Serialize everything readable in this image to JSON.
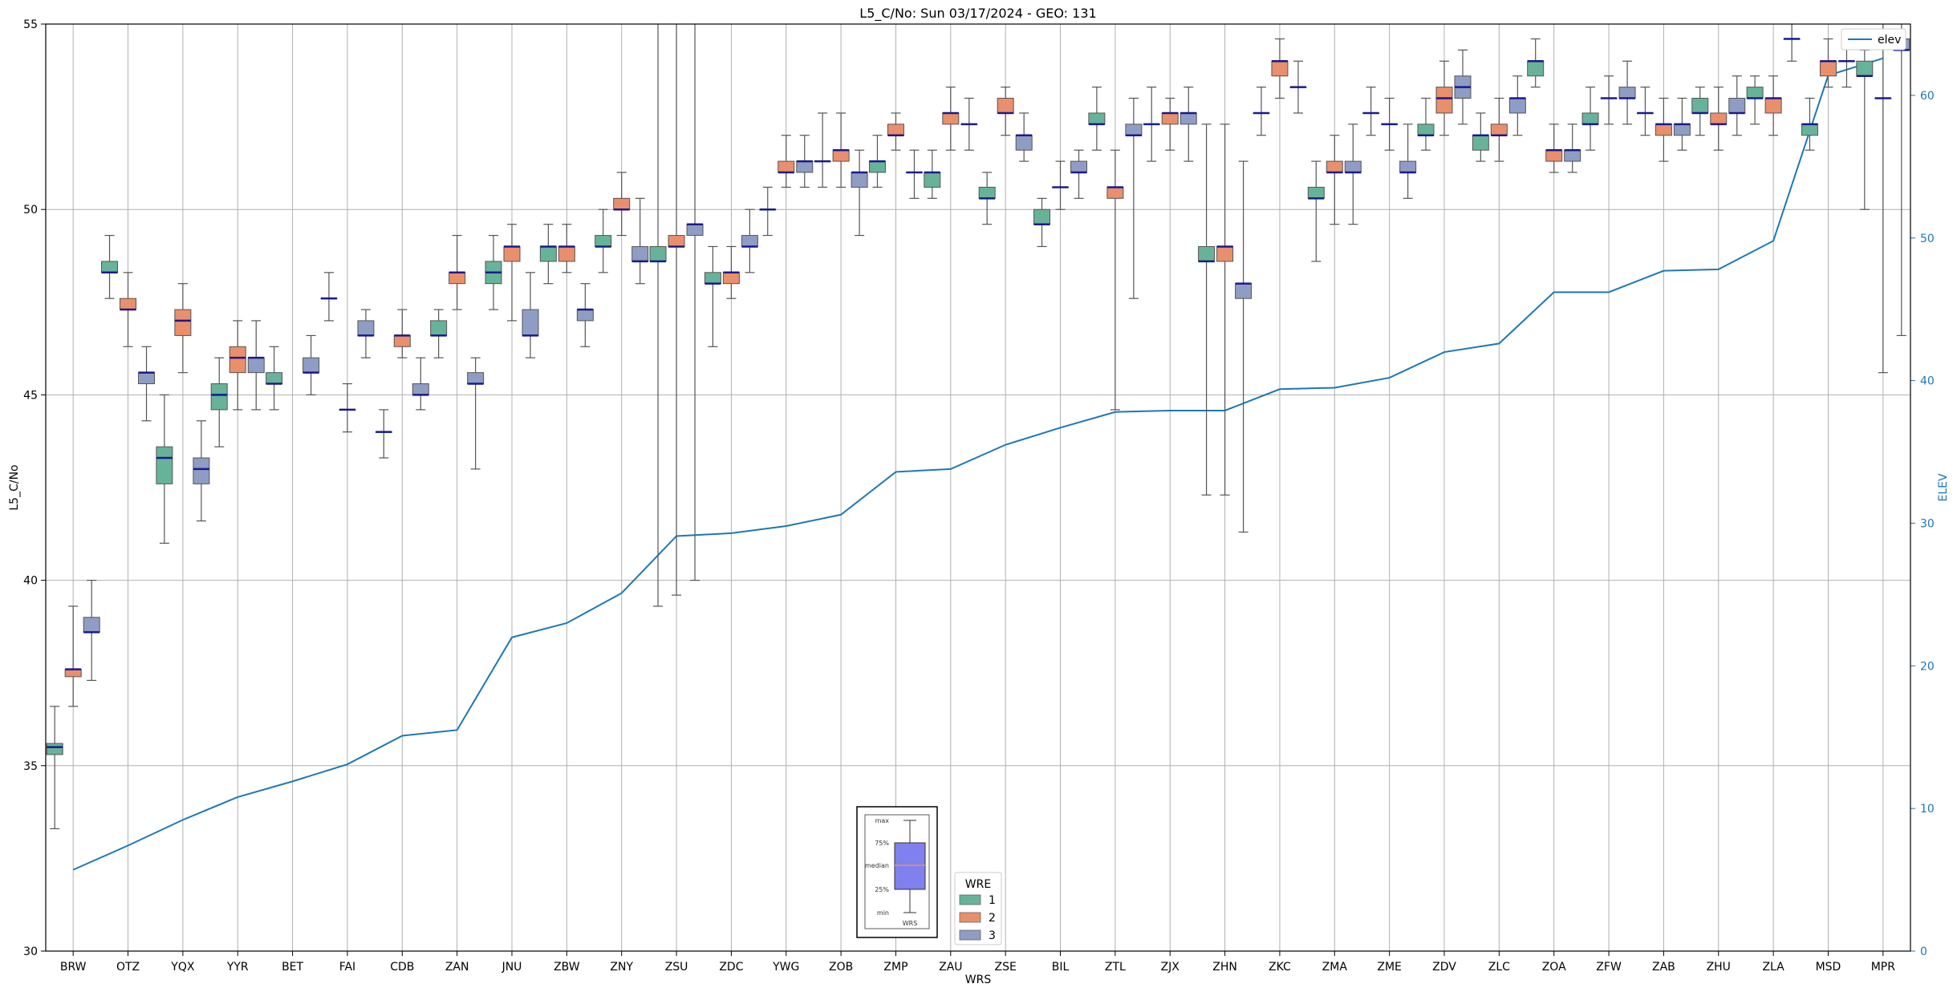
{
  "chart_data": {
    "type": "box",
    "title": "L5_C/No: Sun 03/17/2024 - GEO: 131",
    "xlabel": "WRS",
    "ylabel": "L5_C/No",
    "y2label": "ELEV",
    "ylim": [
      30,
      55
    ],
    "y2lim": [
      0,
      65
    ],
    "yticks": [
      30,
      35,
      40,
      45,
      50,
      55
    ],
    "y2ticks": [
      0,
      10,
      20,
      30,
      40,
      50,
      60
    ],
    "grid": true,
    "categories": [
      "BRW",
      "OTZ",
      "YQX",
      "YYR",
      "BET",
      "FAI",
      "CDB",
      "ZAN",
      "JNU",
      "ZBW",
      "ZNY",
      "ZSU",
      "ZDC",
      "YWG",
      "ZOB",
      "ZMP",
      "ZAU",
      "ZSE",
      "BIL",
      "ZTL",
      "ZJX",
      "ZHN",
      "ZKC",
      "ZMA",
      "ZME",
      "ZDV",
      "ZLC",
      "ZOA",
      "ZFW",
      "ZAB",
      "ZHU",
      "ZLA",
      "MSD",
      "MPR"
    ],
    "legend": {
      "title": "WRE",
      "placement": "bottom-center",
      "entries": [
        "1",
        "2",
        "3"
      ]
    },
    "colors": {
      "wre1": "#66b39a",
      "wre2": "#e98f6c",
      "wre3": "#8f9dc4",
      "median": "#1a1a8c",
      "elev": "#1f77b4",
      "whisker": "#555555",
      "outlier_whisker": "#e0303a"
    },
    "elevation_series": {
      "name": "elev",
      "values": [
        5.7,
        7.4,
        9.2,
        10.8,
        11.9,
        13.1,
        15.1,
        15.5,
        22.0,
        23.0,
        25.1,
        29.1,
        29.3,
        29.8,
        30.6,
        33.6,
        33.8,
        35.5,
        36.7,
        37.8,
        37.9,
        37.9,
        39.4,
        39.5,
        40.2,
        42.0,
        42.6,
        46.2,
        46.2,
        47.7,
        47.8,
        49.8,
        61.4,
        62.6
      ]
    },
    "boxes": [
      {
        "site": "BRW",
        "wre": "1",
        "min": 33.3,
        "q1": 35.3,
        "median": 35.5,
        "q3": 35.6,
        "max": 36.6
      },
      {
        "site": "BRW",
        "wre": "2",
        "min": 36.6,
        "q1": 37.4,
        "median": 37.6,
        "q3": 37.6,
        "max": 39.3
      },
      {
        "site": "BRW",
        "wre": "3",
        "min": 37.3,
        "q1": 38.6,
        "median": 38.6,
        "q3": 39.0,
        "max": 40.0
      },
      {
        "site": "OTZ",
        "wre": "1",
        "min": 47.6,
        "q1": 48.3,
        "median": 48.3,
        "q3": 48.6,
        "max": 49.3
      },
      {
        "site": "OTZ",
        "wre": "2",
        "min": 46.3,
        "q1": 47.3,
        "median": 47.3,
        "q3": 47.6,
        "max": 48.3
      },
      {
        "site": "OTZ",
        "wre": "3",
        "min": 44.3,
        "q1": 45.3,
        "median": 45.6,
        "q3": 45.6,
        "max": 46.3
      },
      {
        "site": "YQX",
        "wre": "1",
        "min": 41.0,
        "q1": 42.6,
        "median": 43.3,
        "q3": 43.6,
        "max": 45.0
      },
      {
        "site": "YQX",
        "wre": "2",
        "min": 45.6,
        "q1": 46.6,
        "median": 47.0,
        "q3": 47.3,
        "max": 48.0
      },
      {
        "site": "YQX",
        "wre": "3",
        "min": 41.6,
        "q1": 42.6,
        "median": 43.0,
        "q3": 43.3,
        "max": 44.3
      },
      {
        "site": "YYR",
        "wre": "1",
        "min": 43.6,
        "q1": 44.6,
        "median": 45.0,
        "q3": 45.3,
        "max": 46.0
      },
      {
        "site": "YYR",
        "wre": "2",
        "min": 44.6,
        "q1": 45.6,
        "median": 46.0,
        "q3": 46.3,
        "max": 47.0
      },
      {
        "site": "YYR",
        "wre": "3",
        "min": 44.6,
        "q1": 45.6,
        "median": 46.0,
        "q3": 46.0,
        "max": 47.0
      },
      {
        "site": "BET",
        "wre": "1",
        "min": 44.6,
        "q1": 45.3,
        "median": 45.3,
        "q3": 45.6,
        "max": 46.3
      },
      {
        "site": "BET",
        "wre": "3",
        "min": 45.0,
        "q1": 45.6,
        "median": 45.6,
        "q3": 46.0,
        "max": 46.6
      },
      {
        "site": "FAI",
        "wre": "1",
        "min": 47.0,
        "q1": 47.6,
        "median": 47.6,
        "q3": 47.6,
        "max": 48.3
      },
      {
        "site": "FAI",
        "wre": "2",
        "min": 44.0,
        "q1": 44.6,
        "median": 44.6,
        "q3": 44.6,
        "max": 45.3
      },
      {
        "site": "FAI",
        "wre": "3",
        "min": 46.0,
        "q1": 46.6,
        "median": 46.6,
        "q3": 47.0,
        "max": 47.3
      },
      {
        "site": "CDB",
        "wre": "1",
        "min": 43.3,
        "q1": 44.0,
        "median": 44.0,
        "q3": 44.0,
        "max": 44.6
      },
      {
        "site": "CDB",
        "wre": "2",
        "min": 46.0,
        "q1": 46.3,
        "median": 46.6,
        "q3": 46.6,
        "max": 47.3
      },
      {
        "site": "CDB",
        "wre": "3",
        "min": 44.6,
        "q1": 45.0,
        "median": 45.0,
        "q3": 45.3,
        "max": 46.0
      },
      {
        "site": "ZAN",
        "wre": "1",
        "min": 46.0,
        "q1": 46.6,
        "median": 46.6,
        "q3": 47.0,
        "max": 47.3
      },
      {
        "site": "ZAN",
        "wre": "2",
        "min": 47.3,
        "q1": 48.0,
        "median": 48.3,
        "q3": 48.3,
        "max": 49.3
      },
      {
        "site": "ZAN",
        "wre": "3",
        "min": 43.0,
        "q1": 45.3,
        "median": 45.3,
        "q3": 45.6,
        "max": 46.0
      },
      {
        "site": "JNU",
        "wre": "1",
        "min": 47.3,
        "q1": 48.0,
        "median": 48.3,
        "q3": 48.6,
        "max": 49.3
      },
      {
        "site": "JNU",
        "wre": "2",
        "min": 47.0,
        "q1": 48.6,
        "median": 49.0,
        "q3": 49.0,
        "max": 49.6
      },
      {
        "site": "JNU",
        "wre": "3",
        "min": 46.0,
        "q1": 46.6,
        "median": 46.6,
        "q3": 47.3,
        "max": 48.3
      },
      {
        "site": "ZBW",
        "wre": "1",
        "min": 48.0,
        "q1": 48.6,
        "median": 49.0,
        "q3": 49.0,
        "max": 49.6
      },
      {
        "site": "ZBW",
        "wre": "2",
        "min": 48.3,
        "q1": 48.6,
        "median": 49.0,
        "q3": 49.0,
        "max": 49.6
      },
      {
        "site": "ZBW",
        "wre": "3",
        "min": 46.3,
        "q1": 47.0,
        "median": 47.3,
        "q3": 47.3,
        "max": 48.0
      },
      {
        "site": "ZNY",
        "wre": "1",
        "min": 48.3,
        "q1": 49.0,
        "median": 49.0,
        "q3": 49.3,
        "max": 50.0
      },
      {
        "site": "ZNY",
        "wre": "2",
        "min": 49.3,
        "q1": 50.0,
        "median": 50.0,
        "q3": 50.3,
        "max": 51.0
      },
      {
        "site": "ZNY",
        "wre": "3",
        "min": 48.0,
        "q1": 48.6,
        "median": 48.6,
        "q3": 49.0,
        "max": 50.3
      },
      {
        "site": "ZSU",
        "wre": "1",
        "min": 39.3,
        "q1": 48.6,
        "median": 48.6,
        "q3": 49.0,
        "max": 55.0
      },
      {
        "site": "ZSU",
        "wre": "2",
        "min": 39.6,
        "q1": 49.0,
        "median": 49.0,
        "q3": 49.3,
        "max": 55.0
      },
      {
        "site": "ZSU",
        "wre": "3",
        "min": 40.0,
        "q1": 49.3,
        "median": 49.6,
        "q3": 49.6,
        "max": 55.0
      },
      {
        "site": "ZDC",
        "wre": "1",
        "min": 46.3,
        "q1": 48.0,
        "median": 48.0,
        "q3": 48.3,
        "max": 49.0
      },
      {
        "site": "ZDC",
        "wre": "2",
        "min": 47.6,
        "q1": 48.0,
        "median": 48.3,
        "q3": 48.3,
        "max": 49.0
      },
      {
        "site": "ZDC",
        "wre": "3",
        "min": 48.3,
        "q1": 49.0,
        "median": 49.0,
        "q3": 49.3,
        "max": 50.0
      },
      {
        "site": "YWG",
        "wre": "1",
        "min": 49.3,
        "q1": 50.0,
        "median": 50.0,
        "q3": 50.0,
        "max": 50.6
      },
      {
        "site": "YWG",
        "wre": "2",
        "min": 50.6,
        "q1": 51.0,
        "median": 51.0,
        "q3": 51.3,
        "max": 52.0
      },
      {
        "site": "YWG",
        "wre": "3",
        "min": 50.6,
        "q1": 51.0,
        "median": 51.3,
        "q3": 51.3,
        "max": 52.0
      },
      {
        "site": "ZOB",
        "wre": "1",
        "min": 50.6,
        "q1": 51.3,
        "median": 51.3,
        "q3": 51.3,
        "max": 52.6
      },
      {
        "site": "ZOB",
        "wre": "2",
        "min": 50.6,
        "q1": 51.3,
        "median": 51.6,
        "q3": 51.6,
        "max": 52.6
      },
      {
        "site": "ZOB",
        "wre": "3",
        "min": 49.3,
        "q1": 50.6,
        "median": 51.0,
        "q3": 51.0,
        "max": 51.6
      },
      {
        "site": "ZMP",
        "wre": "1",
        "min": 50.6,
        "q1": 51.0,
        "median": 51.3,
        "q3": 51.3,
        "max": 52.0
      },
      {
        "site": "ZMP",
        "wre": "2",
        "min": 51.6,
        "q1": 52.0,
        "median": 52.0,
        "q3": 52.3,
        "max": 52.6
      },
      {
        "site": "ZMP",
        "wre": "3",
        "min": 50.3,
        "q1": 51.0,
        "median": 51.0,
        "q3": 51.0,
        "max": 51.6
      },
      {
        "site": "ZAU",
        "wre": "1",
        "min": 50.3,
        "q1": 50.6,
        "median": 51.0,
        "q3": 51.0,
        "max": 51.6
      },
      {
        "site": "ZAU",
        "wre": "2",
        "min": 51.6,
        "q1": 52.3,
        "median": 52.6,
        "q3": 52.6,
        "max": 53.3
      },
      {
        "site": "ZAU",
        "wre": "3",
        "min": 51.6,
        "q1": 52.3,
        "median": 52.3,
        "q3": 52.3,
        "max": 53.0
      },
      {
        "site": "ZSE",
        "wre": "1",
        "min": 49.6,
        "q1": 50.3,
        "median": 50.3,
        "q3": 50.6,
        "max": 51.0
      },
      {
        "site": "ZSE",
        "wre": "2",
        "min": 52.0,
        "q1": 52.6,
        "median": 52.6,
        "q3": 53.0,
        "max": 53.3
      },
      {
        "site": "ZSE",
        "wre": "3",
        "min": 51.3,
        "q1": 51.6,
        "median": 52.0,
        "q3": 52.0,
        "max": 52.6
      },
      {
        "site": "BIL",
        "wre": "1",
        "min": 49.0,
        "q1": 49.6,
        "median": 49.6,
        "q3": 50.0,
        "max": 50.3
      },
      {
        "site": "BIL",
        "wre": "2",
        "min": 50.0,
        "q1": 50.6,
        "median": 50.6,
        "q3": 50.6,
        "max": 51.3
      },
      {
        "site": "BIL",
        "wre": "3",
        "min": 50.3,
        "q1": 51.0,
        "median": 51.0,
        "q3": 51.3,
        "max": 51.6
      },
      {
        "site": "ZTL",
        "wre": "1",
        "min": 51.6,
        "q1": 52.3,
        "median": 52.3,
        "q3": 52.6,
        "max": 53.3
      },
      {
        "site": "ZTL",
        "wre": "2",
        "min": 44.6,
        "q1": 50.3,
        "median": 50.6,
        "q3": 50.6,
        "max": 51.6
      },
      {
        "site": "ZTL",
        "wre": "3",
        "min": 47.6,
        "q1": 52.0,
        "median": 52.0,
        "q3": 52.3,
        "max": 53.0
      },
      {
        "site": "ZJX",
        "wre": "1",
        "min": 51.3,
        "q1": 52.3,
        "median": 52.3,
        "q3": 52.3,
        "max": 53.3
      },
      {
        "site": "ZJX",
        "wre": "2",
        "min": 51.6,
        "q1": 52.3,
        "median": 52.6,
        "q3": 52.6,
        "max": 53.0
      },
      {
        "site": "ZJX",
        "wre": "3",
        "min": 51.3,
        "q1": 52.3,
        "median": 52.6,
        "q3": 52.6,
        "max": 53.3
      },
      {
        "site": "ZHN",
        "wre": "1",
        "min": 42.3,
        "q1": 48.6,
        "median": 48.6,
        "q3": 49.0,
        "max": 52.3
      },
      {
        "site": "ZHN",
        "wre": "2",
        "min": 42.3,
        "q1": 48.6,
        "median": 49.0,
        "q3": 49.0,
        "max": 52.3
      },
      {
        "site": "ZHN",
        "wre": "3",
        "min": 41.3,
        "q1": 47.6,
        "median": 48.0,
        "q3": 48.0,
        "max": 51.3
      },
      {
        "site": "ZKC",
        "wre": "1",
        "min": 52.0,
        "q1": 52.6,
        "median": 52.6,
        "q3": 52.6,
        "max": 53.3
      },
      {
        "site": "ZKC",
        "wre": "2",
        "min": 53.0,
        "q1": 53.6,
        "median": 54.0,
        "q3": 54.0,
        "max": 54.6
      },
      {
        "site": "ZKC",
        "wre": "3",
        "min": 52.6,
        "q1": 53.3,
        "median": 53.3,
        "q3": 53.3,
        "max": 54.0
      },
      {
        "site": "ZMA",
        "wre": "1",
        "min": 48.6,
        "q1": 50.3,
        "median": 50.3,
        "q3": 50.6,
        "max": 51.3
      },
      {
        "site": "ZMA",
        "wre": "2",
        "min": 49.6,
        "q1": 51.0,
        "median": 51.0,
        "q3": 51.3,
        "max": 52.0
      },
      {
        "site": "ZMA",
        "wre": "3",
        "min": 49.6,
        "q1": 51.0,
        "median": 51.0,
        "q3": 51.3,
        "max": 52.3
      },
      {
        "site": "ZME",
        "wre": "1",
        "min": 52.0,
        "q1": 52.6,
        "median": 52.6,
        "q3": 52.6,
        "max": 53.3
      },
      {
        "site": "ZME",
        "wre": "2",
        "min": 51.6,
        "q1": 52.3,
        "median": 52.3,
        "q3": 52.3,
        "max": 53.0
      },
      {
        "site": "ZME",
        "wre": "3",
        "min": 50.3,
        "q1": 51.0,
        "median": 51.0,
        "q3": 51.3,
        "max": 52.3
      },
      {
        "site": "ZDV",
        "wre": "1",
        "min": 51.6,
        "q1": 52.0,
        "median": 52.0,
        "q3": 52.3,
        "max": 53.0
      },
      {
        "site": "ZDV",
        "wre": "2",
        "min": 52.0,
        "q1": 52.6,
        "median": 53.0,
        "q3": 53.3,
        "max": 54.0
      },
      {
        "site": "ZDV",
        "wre": "3",
        "min": 52.3,
        "q1": 53.0,
        "median": 53.3,
        "q3": 53.6,
        "max": 54.3
      },
      {
        "site": "ZLC",
        "wre": "1",
        "min": 51.3,
        "q1": 51.6,
        "median": 52.0,
        "q3": 52.0,
        "max": 52.6
      },
      {
        "site": "ZLC",
        "wre": "2",
        "min": 51.3,
        "q1": 52.0,
        "median": 52.0,
        "q3": 52.3,
        "max": 53.0
      },
      {
        "site": "ZLC",
        "wre": "3",
        "min": 52.0,
        "q1": 52.6,
        "median": 53.0,
        "q3": 53.0,
        "max": 53.6
      },
      {
        "site": "ZOA",
        "wre": "1",
        "min": 53.3,
        "q1": 53.6,
        "median": 54.0,
        "q3": 54.0,
        "max": 54.6
      },
      {
        "site": "ZOA",
        "wre": "2",
        "min": 51.0,
        "q1": 51.3,
        "median": 51.6,
        "q3": 51.6,
        "max": 52.3
      },
      {
        "site": "ZOA",
        "wre": "3",
        "min": 51.0,
        "q1": 51.3,
        "median": 51.6,
        "q3": 51.6,
        "max": 52.3
      },
      {
        "site": "ZFW",
        "wre": "1",
        "min": 51.6,
        "q1": 52.3,
        "median": 52.3,
        "q3": 52.6,
        "max": 53.3
      },
      {
        "site": "ZFW",
        "wre": "2",
        "min": 52.3,
        "q1": 53.0,
        "median": 53.0,
        "q3": 53.0,
        "max": 53.6
      },
      {
        "site": "ZFW",
        "wre": "3",
        "min": 52.3,
        "q1": 53.0,
        "median": 53.0,
        "q3": 53.3,
        "max": 54.0
      },
      {
        "site": "ZAB",
        "wre": "1",
        "min": 52.0,
        "q1": 52.6,
        "median": 52.6,
        "q3": 52.6,
        "max": 53.3
      },
      {
        "site": "ZAB",
        "wre": "2",
        "min": 51.3,
        "q1": 52.0,
        "median": 52.3,
        "q3": 52.3,
        "max": 53.0
      },
      {
        "site": "ZAB",
        "wre": "3",
        "min": 51.6,
        "q1": 52.0,
        "median": 52.3,
        "q3": 52.3,
        "max": 53.0
      },
      {
        "site": "ZHU",
        "wre": "1",
        "min": 52.0,
        "q1": 52.6,
        "median": 52.6,
        "q3": 53.0,
        "max": 53.3
      },
      {
        "site": "ZHU",
        "wre": "2",
        "min": 51.6,
        "q1": 52.3,
        "median": 52.3,
        "q3": 52.6,
        "max": 53.3
      },
      {
        "site": "ZHU",
        "wre": "3",
        "min": 52.0,
        "q1": 52.6,
        "median": 52.6,
        "q3": 53.0,
        "max": 53.6
      },
      {
        "site": "ZLA",
        "wre": "1",
        "min": 52.3,
        "q1": 53.0,
        "median": 53.0,
        "q3": 53.3,
        "max": 53.6
      },
      {
        "site": "ZLA",
        "wre": "2",
        "min": 52.0,
        "q1": 52.6,
        "median": 53.0,
        "q3": 53.0,
        "max": 53.6
      },
      {
        "site": "ZLA",
        "wre": "3",
        "min": 54.0,
        "q1": 54.6,
        "median": 54.6,
        "q3": 54.6,
        "max": 55.0
      },
      {
        "site": "MSD",
        "wre": "1",
        "min": 51.6,
        "q1": 52.0,
        "median": 52.3,
        "q3": 52.3,
        "max": 53.0
      },
      {
        "site": "MSD",
        "wre": "2",
        "min": 53.3,
        "q1": 53.6,
        "median": 54.0,
        "q3": 54.0,
        "max": 54.6
      },
      {
        "site": "MSD",
        "wre": "3",
        "min": 53.3,
        "q1": 54.0,
        "median": 54.0,
        "q3": 54.0,
        "max": 54.6
      },
      {
        "site": "MPR",
        "wre": "1",
        "min": 50.0,
        "q1": 53.6,
        "median": 53.6,
        "q3": 54.0,
        "max": 54.3
      },
      {
        "site": "MPR",
        "wre": "2",
        "min": 45.6,
        "q1": 53.0,
        "median": 53.0,
        "q3": 53.0,
        "max": 55.0
      },
      {
        "site": "MPR",
        "wre": "3",
        "min": 46.6,
        "q1": 54.3,
        "median": 54.3,
        "q3": 54.6,
        "max": 55.0
      }
    ],
    "box_key": {
      "labels": [
        "max",
        "75%",
        "median",
        "25%",
        "min"
      ],
      "caption": "WRS"
    }
  }
}
